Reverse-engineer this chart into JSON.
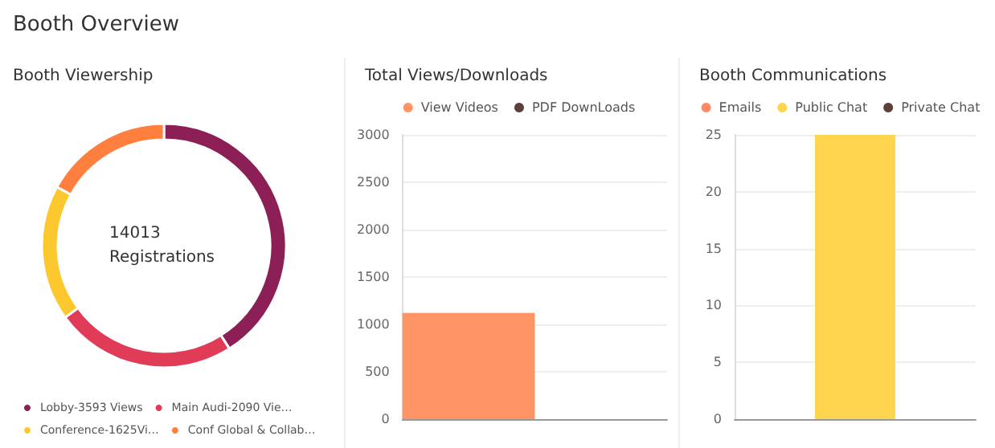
{
  "chart_data": [
    {
      "type": "donut",
      "title": "Booth Overview",
      "subtitle": "Booth Viewership",
      "categories": [
        "Lobby-3593 Views",
        "Main Audi-2090 Vie…",
        "Conference-1625Vi…",
        "Conf Global & Collab…"
      ],
      "values": [
        41,
        24,
        18,
        17
      ],
      "colors": [
        "#8b1f56",
        "#e03c58",
        "#fdc82e",
        "#ff7f3f"
      ],
      "annotations": [
        "14013 Registrations"
      ],
      "legend": "bottom"
    },
    {
      "type": "bar",
      "title": "Total Views/Downloads",
      "categories": [
        null
      ],
      "series": [
        {
          "name": "View Videos",
          "color": "#ff9466",
          "values": [
            1120
          ]
        },
        {
          "name": "PDF DownLoads",
          "color": "#5d4037",
          "values": [
            0
          ]
        }
      ],
      "ylim": [
        0,
        3000
      ],
      "yticks": [
        0,
        500,
        1000,
        1500,
        2000,
        2500,
        3000
      ],
      "grid": "y",
      "legend": "top",
      "tick_labels": "y"
    },
    {
      "type": "bar",
      "title": "Booth Communications",
      "categories": [
        null
      ],
      "series": [
        {
          "name": "Emails",
          "color": "#ff8a65",
          "values": [
            0
          ]
        },
        {
          "name": "Public Chat",
          "color": "#ffd54f",
          "values": [
            25
          ]
        },
        {
          "name": "Private Chat",
          "color": "#5d4037",
          "values": [
            0
          ]
        }
      ],
      "ylim": [
        0,
        25
      ],
      "yticks": [
        0,
        5,
        10,
        15,
        20,
        25
      ],
      "grid": "y",
      "legend": "top",
      "tick_labels": "y"
    }
  ]
}
